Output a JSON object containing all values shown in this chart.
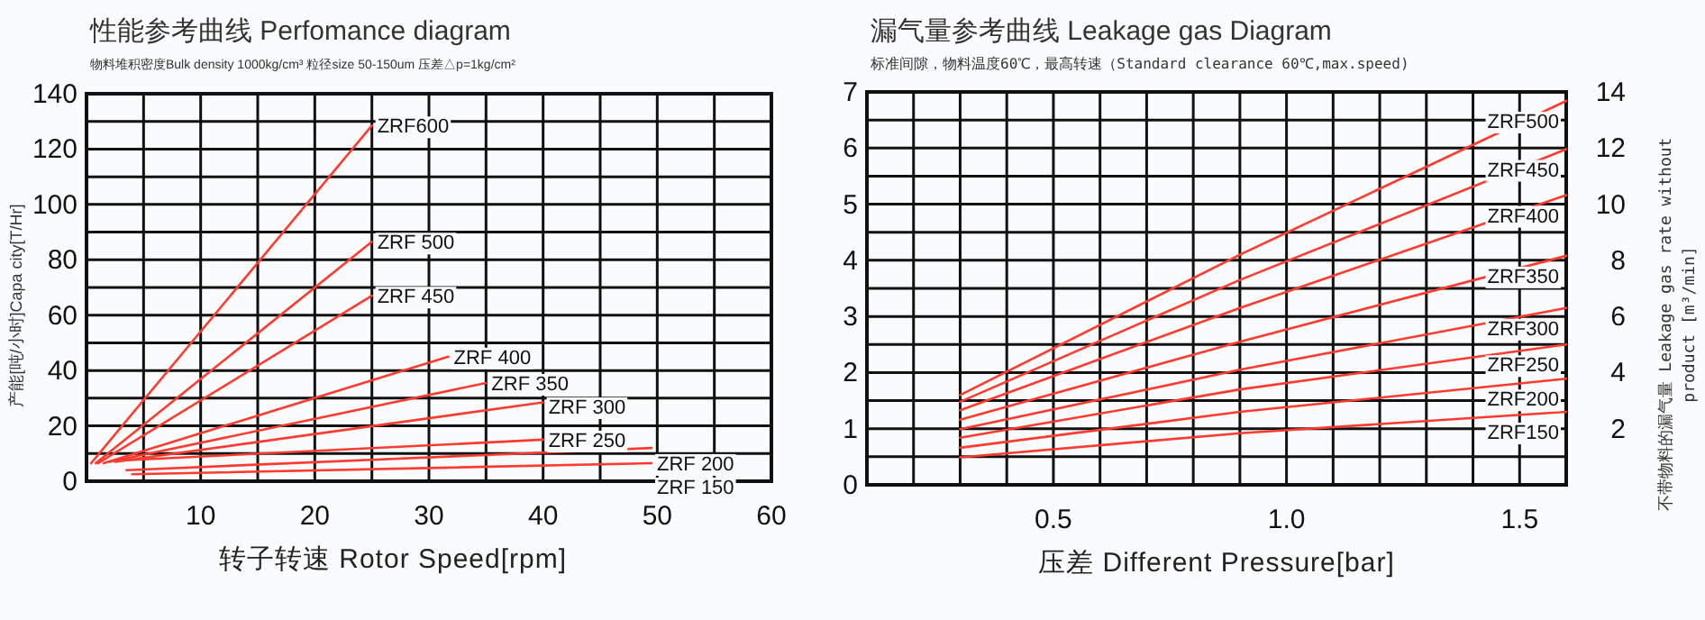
{
  "chart_data": [
    {
      "type": "line",
      "title": "性能参考曲线 Perfomance   diagram",
      "subtitle": "物料堆积密度Bulk density 1000kg/cm³  粒径size   50-150um     压差△p=1kg/cm²",
      "xlabel": "转子转速   Rotor Speed[rpm]",
      "ylabel": "产能[吨/小时]Capa city[T/Hr]",
      "xlim": [
        0,
        60
      ],
      "ylim": [
        0,
        140
      ],
      "xticks": [
        {
          "value": 5,
          "label": null
        },
        10,
        {
          "value": 15,
          "label": null
        },
        20,
        {
          "value": 25,
          "label": null
        },
        30,
        {
          "value": 35,
          "label": null
        },
        40,
        {
          "value": 45,
          "label": null
        },
        50,
        {
          "value": 55,
          "label": null
        },
        60
      ],
      "yticks": [
        0,
        {
          "value": 10,
          "label": null
        },
        20,
        {
          "value": 30,
          "label": null
        },
        40,
        {
          "value": 50,
          "label": null
        },
        60,
        {
          "value": 70,
          "label": null
        },
        80,
        {
          "value": 90,
          "label": null
        },
        100,
        {
          "value": 110,
          "label": null
        },
        120,
        {
          "value": 130,
          "label": null
        },
        140
      ],
      "grid": true,
      "line_style": "solid",
      "series": [
        {
          "name": "ZRF600",
          "color": "#ff3b30",
          "x": [
            0.4,
            25
          ],
          "values": [
            6.5,
            128.5
          ]
        },
        {
          "name": "ZRF 500",
          "color": "#ff3b30",
          "x": [
            0.8,
            25
          ],
          "values": [
            6.5,
            86.5
          ]
        },
        {
          "name": "ZRF 450",
          "color": "#ff3b30",
          "x": [
            1,
            25
          ],
          "values": [
            6.5,
            67
          ]
        },
        {
          "name": "ZRF 400",
          "color": "#ff3b30",
          "x": [
            1.5,
            31.7
          ],
          "values": [
            6.5,
            45
          ]
        },
        {
          "name": "ZRF 350",
          "color": "#ff3b30",
          "x": [
            2,
            35
          ],
          "values": [
            7,
            35.5
          ]
        },
        {
          "name": "ZRF 300",
          "color": "#ff3b30",
          "x": [
            2.5,
            40
          ],
          "values": [
            7,
            28.5
          ]
        },
        {
          "name": "ZRF 250",
          "color": "#ff3b30",
          "x": [
            3,
            40
          ],
          "values": [
            7.5,
            15
          ]
        },
        {
          "name": "ZRF 200",
          "color": "#ff3b30",
          "x": [
            3.5,
            49.5
          ],
          "values": [
            4,
            12
          ]
        },
        {
          "name": "ZRF 150",
          "color": "#ff3b30",
          "x": [
            4,
            49.5
          ],
          "values": [
            2.5,
            6.5
          ]
        }
      ]
    },
    {
      "type": "line",
      "title": "漏气量参考曲线 Leakage gas Diagram",
      "subtitle": "标准间隙，物料温度60℃，最高转速（Standard clearance 60℃,max.speed)",
      "xlabel": "压差  Different Pressure[bar]",
      "y2label": "不带物料的漏气量 Leakage gas rate without product [m³/min]",
      "xlim": [
        0.1,
        1.6
      ],
      "ylim": [
        0,
        7
      ],
      "y2lim": [
        0,
        14
      ],
      "xticks": [
        {
          "value": 0.2,
          "label": null
        },
        {
          "value": 0.3,
          "label": null
        },
        {
          "value": 0.4,
          "label": null
        },
        0.5,
        {
          "value": 0.6,
          "label": null
        },
        {
          "value": 0.7,
          "label": null
        },
        {
          "value": 0.8,
          "label": null
        },
        {
          "value": 0.9,
          "label": null
        },
        {
          "value": 1.0,
          "label": "1.0"
        },
        {
          "value": 1.1,
          "label": null
        },
        {
          "value": 1.2,
          "label": null
        },
        {
          "value": 1.3,
          "label": null
        },
        {
          "value": 1.4,
          "label": null
        },
        1.5
      ],
      "yticks": [
        0,
        {
          "value": 0.5,
          "label": null
        },
        1,
        {
          "value": 1.5,
          "label": null
        },
        2,
        {
          "value": 2.5,
          "label": null
        },
        3,
        {
          "value": 3.5,
          "label": null
        },
        4,
        {
          "value": 4.5,
          "label": null
        },
        5,
        {
          "value": 5.5,
          "label": null
        },
        6,
        {
          "value": 6.5,
          "label": null
        },
        7
      ],
      "y2ticks": [
        2,
        4,
        6,
        8,
        10,
        12,
        14
      ],
      "grid": true,
      "line_style": "solid",
      "series": [
        {
          "name": "ZRF500",
          "color": "#ff3b30",
          "x": [
            0.3,
            0.9,
            1.6
          ],
          "values": [
            1.6,
            4.1,
            6.84
          ]
        },
        {
          "name": "ZRF450",
          "color": "#ff3b30",
          "x": [
            0.3,
            0.9,
            1.6
          ],
          "values": [
            1.48,
            3.65,
            5.98
          ]
        },
        {
          "name": "ZRF400",
          "color": "#ff3b30",
          "x": [
            0.3,
            0.9,
            1.6
          ],
          "values": [
            1.33,
            3.15,
            5.16
          ]
        },
        {
          "name": "ZRF350",
          "color": "#ff3b30",
          "x": [
            0.3,
            0.9,
            1.6
          ],
          "values": [
            1.16,
            2.55,
            4.08
          ]
        },
        {
          "name": "ZRF300",
          "color": "#ff3b30",
          "x": [
            0.3,
            0.9,
            1.6
          ],
          "values": [
            0.99,
            2.05,
            3.15
          ]
        },
        {
          "name": "ZRF250",
          "color": "#ff3b30",
          "x": [
            0.3,
            0.9,
            1.6
          ],
          "values": [
            0.84,
            1.7,
            2.5
          ]
        },
        {
          "name": "ZRF200",
          "color": "#ff3b30",
          "x": [
            0.3,
            0.9,
            1.6
          ],
          "values": [
            0.66,
            1.3,
            1.89
          ]
        },
        {
          "name": "ZRF150",
          "color": "#ff3b30",
          "x": [
            0.3,
            0.9,
            1.6
          ],
          "values": [
            0.49,
            0.92,
            1.3
          ]
        }
      ]
    }
  ]
}
